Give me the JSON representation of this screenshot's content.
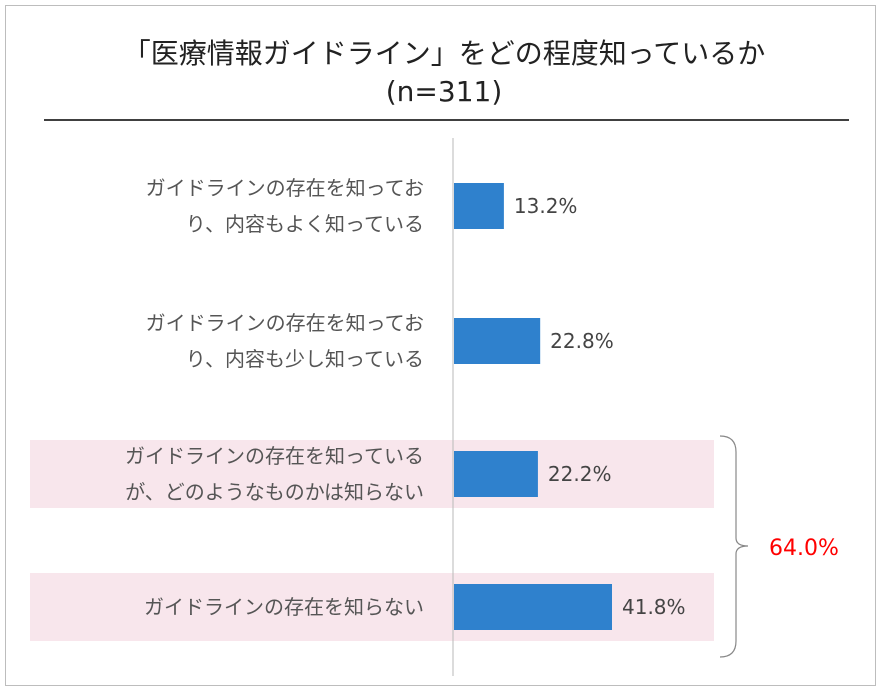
{
  "colors": {
    "bar": "#2f81cd",
    "highlight": "#f8e6ec",
    "accent": "#ff0000",
    "axis": "#b9b9b9",
    "rule": "#000000"
  },
  "chart_data": {
    "type": "bar",
    "orientation": "horizontal",
    "title": "「医療情報ガイドライン」をどの程度知っているか",
    "subtitle": "(n=311)",
    "unit": "%",
    "categories": [
      [
        "ガイドラインの存在を知ってお",
        "り、内容もよく知っている"
      ],
      [
        "ガイドラインの存在を知ってお",
        "り、内容も少し知っている"
      ],
      [
        "ガイドラインの存在を知っている",
        "が、どのようなものかは知らない"
      ],
      [
        "ガイドラインの存在を知らない"
      ]
    ],
    "values": [
      13.2,
      22.8,
      22.2,
      41.8
    ],
    "value_labels": [
      "13.2%",
      "22.8%",
      "22.2%",
      "41.8%"
    ],
    "highlighted": [
      false,
      false,
      true,
      true
    ],
    "bracket_total_label": "64.0%",
    "xlim": [
      0,
      100
    ],
    "grid": false,
    "legend": "none"
  }
}
